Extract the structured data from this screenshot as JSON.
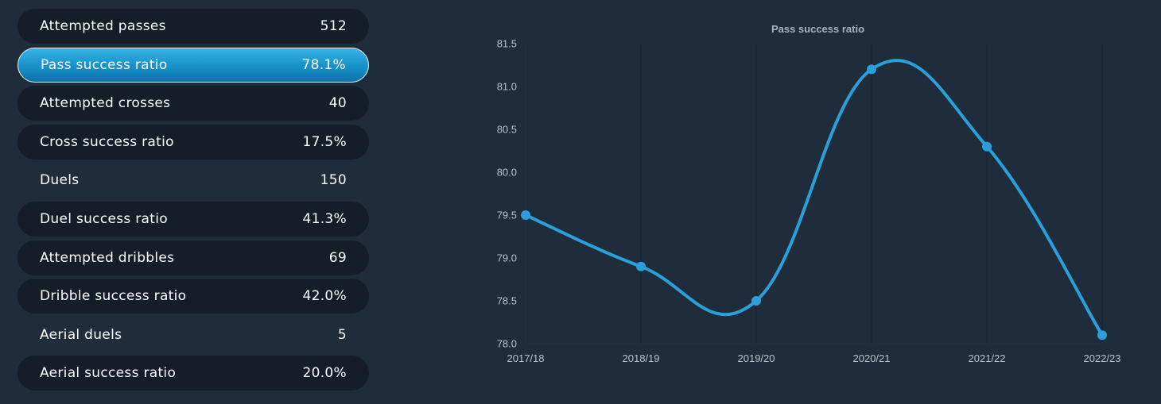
{
  "stats": [
    {
      "label": "Attempted passes",
      "value": "512",
      "style": "filled"
    },
    {
      "label": "Pass success ratio",
      "value": "78.1%",
      "style": "selected"
    },
    {
      "label": "Attempted crosses",
      "value": "40",
      "style": "filled"
    },
    {
      "label": "Cross success ratio",
      "value": "17.5%",
      "style": "filled"
    },
    {
      "label": "Duels",
      "value": "150",
      "style": "plain"
    },
    {
      "label": "Duel success ratio",
      "value": "41.3%",
      "style": "filled"
    },
    {
      "label": "Attempted dribbles",
      "value": "69",
      "style": "filled"
    },
    {
      "label": "Dribble success ratio",
      "value": "42.0%",
      "style": "filled"
    },
    {
      "label": "Aerial duels",
      "value": "5",
      "style": "plain"
    },
    {
      "label": "Aerial success ratio",
      "value": "20.0%",
      "style": "filled"
    }
  ],
  "colors": {
    "background": "#1e2c3b",
    "row_fill": "#141d29",
    "accent": "#2a9fd8",
    "line": "#2a9fd8"
  },
  "chart_data": {
    "type": "line",
    "title": "Pass success ratio",
    "categories": [
      "2017/18",
      "2018/19",
      "2019/20",
      "2020/21",
      "2021/22",
      "2022/23"
    ],
    "series": [
      {
        "values": [
          79.5,
          78.9,
          78.5,
          81.2,
          80.3,
          78.1
        ]
      }
    ],
    "ylim": [
      78.0,
      81.5
    ],
    "yticks": [
      "78.0",
      "78.5",
      "79.0",
      "79.5",
      "80.0",
      "80.5",
      "81.0",
      "81.5"
    ],
    "grid": "vertical",
    "legend": "none",
    "curve": "smooth"
  }
}
